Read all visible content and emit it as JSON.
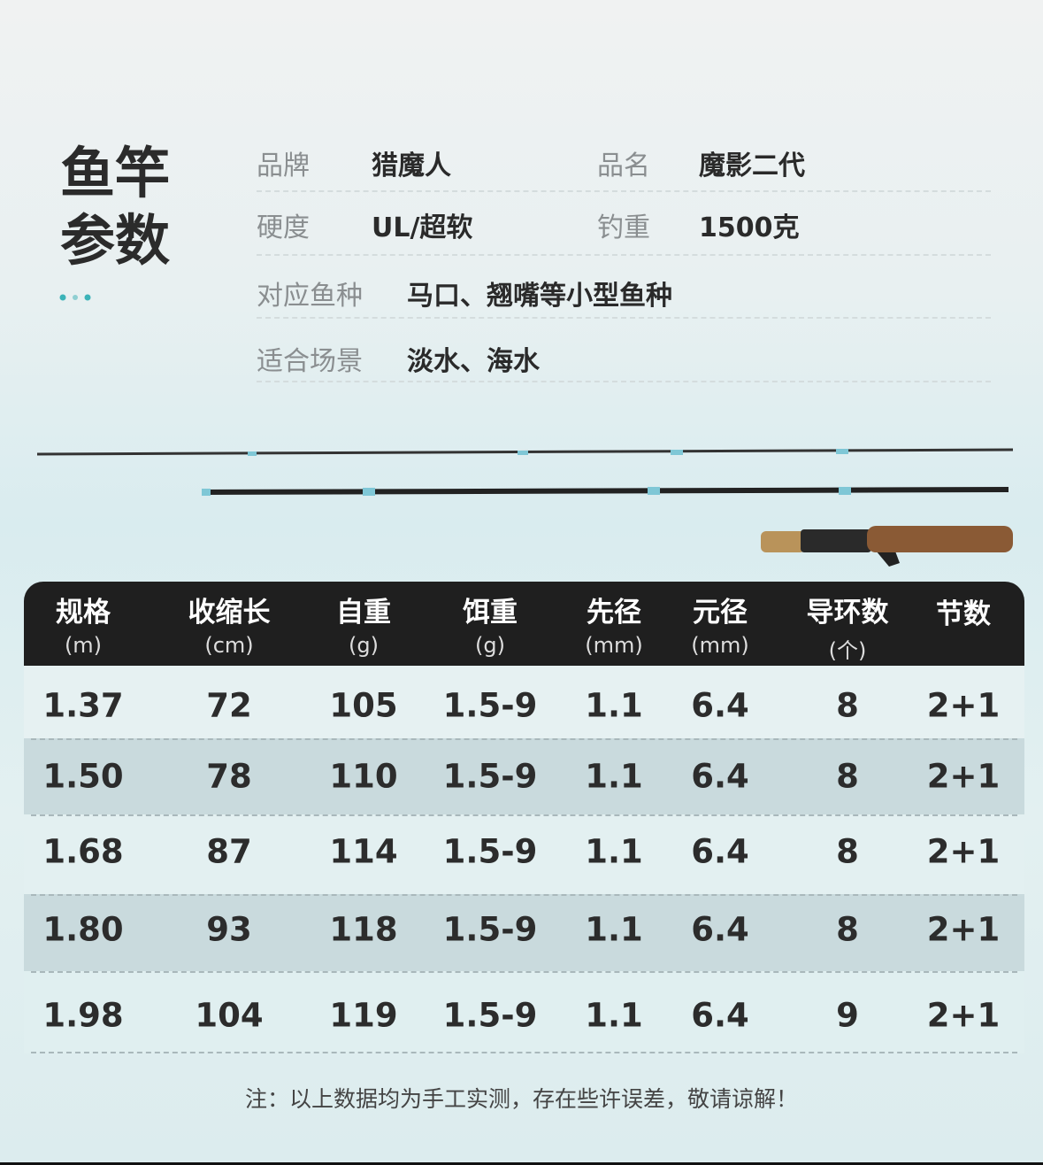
{
  "header": {
    "title": [
      "鱼竿",
      "参数"
    ]
  },
  "specs": [
    {
      "label": "品牌",
      "value": "猎魔人"
    },
    {
      "label": "品名",
      "value": "魔影二代"
    },
    {
      "label": "硬度",
      "value": "UL/超软"
    },
    {
      "label": "钓重",
      "value": "1500克"
    },
    {
      "label": "对应鱼种",
      "value": "马口、翘嘴等小型鱼种"
    },
    {
      "label": "适合场景",
      "value": "淡水、海水"
    }
  ],
  "table": {
    "columns": [
      {
        "name": "规格",
        "unit": "(m)"
      },
      {
        "name": "收缩长",
        "unit": "(cm)"
      },
      {
        "name": "自重",
        "unit": "(g)"
      },
      {
        "name": "饵重",
        "unit": "(g)"
      },
      {
        "name": "先径",
        "unit": "(mm)"
      },
      {
        "name": "元径",
        "unit": "(mm)"
      },
      {
        "name": "导环数",
        "unit": "(个)"
      },
      {
        "name": "节数"
      }
    ],
    "rows": [
      [
        "1.37",
        "72",
        "105",
        "1.5-9",
        "1.1",
        "6.4",
        "8",
        "2+1"
      ],
      [
        "1.50",
        "78",
        "110",
        "1.5-9",
        "1.1",
        "6.4",
        "8",
        "2+1"
      ],
      [
        "1.68",
        "87",
        "114",
        "1.5-9",
        "1.1",
        "6.4",
        "8",
        "2+1"
      ],
      [
        "1.80",
        "93",
        "118",
        "1.5-9",
        "1.1",
        "6.4",
        "8",
        "2+1"
      ],
      [
        "1.98",
        "104",
        "119",
        "1.5-9",
        "1.1",
        "6.4",
        "9",
        "2+1"
      ]
    ]
  },
  "note": "注：以上数据均为手工实测，存在些许误差，敬请谅解！"
}
